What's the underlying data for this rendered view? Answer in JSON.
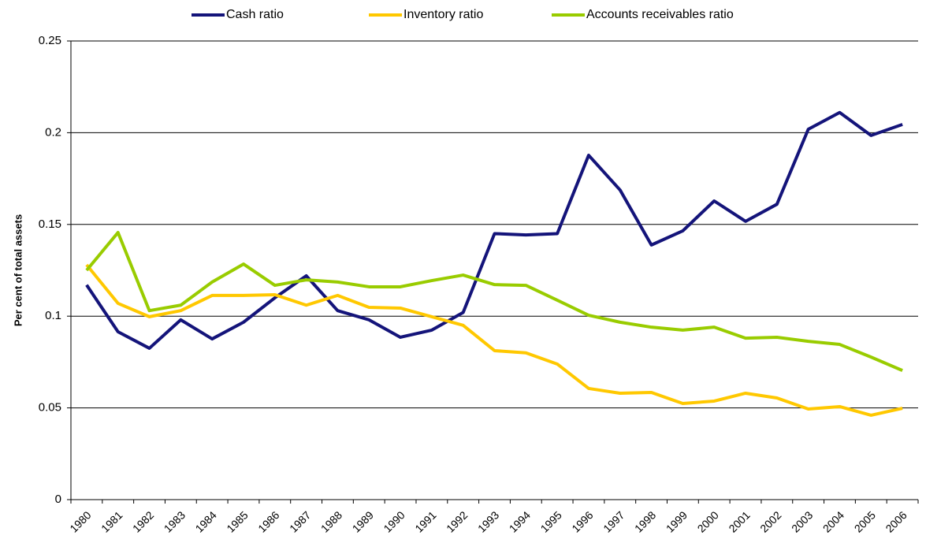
{
  "chart_data": {
    "type": "line",
    "ylabel": "Per cent of total assets",
    "categories": [
      "1980",
      "1981",
      "1982",
      "1983",
      "1984",
      "1985",
      "1986",
      "1987",
      "1988",
      "1989",
      "1990",
      "1991",
      "1992",
      "1993",
      "1994",
      "1995",
      "1996",
      "1997",
      "1998",
      "1999",
      "2000",
      "2001",
      "2002",
      "2003",
      "2004",
      "2005",
      "2006"
    ],
    "series": [
      {
        "name": "Cash ratio",
        "color": "#14147a",
        "values": [
          0.117,
          0.0915,
          0.0825,
          0.098,
          0.0876,
          0.0967,
          0.11,
          0.122,
          0.103,
          0.098,
          0.0885,
          0.0924,
          0.102,
          0.145,
          0.1443,
          0.145,
          0.1877,
          0.1688,
          0.1388,
          0.1465,
          0.1628,
          0.1517,
          0.161,
          0.2019,
          0.211,
          0.1985,
          0.2045
        ]
      },
      {
        "name": "Inventory ratio",
        "color": "#ffc800",
        "values": [
          0.128,
          0.107,
          0.0997,
          0.103,
          0.1113,
          0.1113,
          0.1117,
          0.106,
          0.1113,
          0.1048,
          0.1044,
          0.0997,
          0.095,
          0.0812,
          0.08,
          0.0739,
          0.0606,
          0.058,
          0.0584,
          0.0524,
          0.0537,
          0.058,
          0.0554,
          0.0494,
          0.0507,
          0.046,
          0.0498
        ]
      },
      {
        "name": "Accounts receivables ratio",
        "color": "#99cc00",
        "values": [
          0.125,
          0.1456,
          0.103,
          0.106,
          0.1186,
          0.1284,
          0.1168,
          0.1198,
          0.1186,
          0.116,
          0.116,
          0.1194,
          0.1224,
          0.1172,
          0.1168,
          0.1087,
          0.1005,
          0.0967,
          0.094,
          0.0924,
          0.094,
          0.088,
          0.0885,
          0.0863,
          0.0846,
          0.0777,
          0.0704
        ]
      }
    ],
    "ylim": [
      0,
      0.25
    ],
    "yticks": [
      0,
      0.05,
      0.1,
      0.15,
      0.2,
      0.25
    ],
    "grid": true,
    "legend": "top"
  }
}
